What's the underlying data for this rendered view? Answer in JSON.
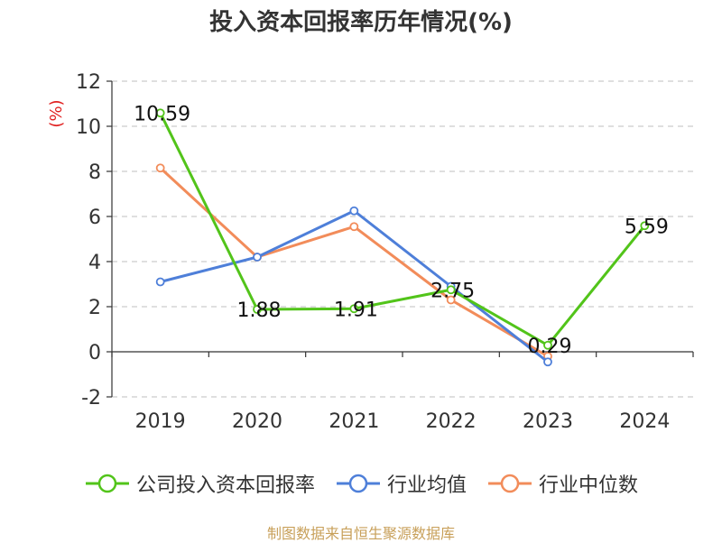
{
  "chart_data": {
    "type": "line",
    "title": "投入资本回报率历年情况(%)",
    "ylabel": "(%)",
    "categories": [
      "2019",
      "2020",
      "2021",
      "2022",
      "2023",
      "2024"
    ],
    "ylim": [
      -2,
      12
    ],
    "yticks": [
      -2,
      0,
      2,
      4,
      6,
      8,
      10,
      12
    ],
    "grid": true,
    "legend_position": "bottom",
    "series": [
      {
        "name": "公司投入资本回报率",
        "color": "#52c41a",
        "values": [
          10.59,
          1.88,
          1.91,
          2.75,
          0.29,
          5.59
        ],
        "labels": [
          "10.59",
          "1.88",
          "1.91",
          "2.75",
          "0.29",
          "5.59"
        ]
      },
      {
        "name": "行业均值",
        "color": "#4e7fd9",
        "values": [
          3.1,
          4.2,
          6.25,
          2.9,
          -0.45,
          null
        ]
      },
      {
        "name": "行业中位数",
        "color": "#f28c5a",
        "values": [
          8.15,
          4.2,
          5.55,
          2.3,
          -0.2,
          null
        ]
      }
    ]
  },
  "footer": {
    "source": "制图数据来自恒生聚源数据库"
  },
  "colors": {
    "ylabel": "#e02020",
    "axis": "#333333",
    "grid": "#cccccc"
  }
}
